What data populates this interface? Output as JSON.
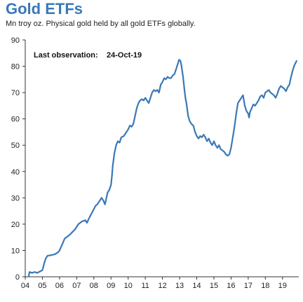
{
  "chart_data": {
    "type": "line",
    "title": "Gold ETFs",
    "subtitle": "Mn troy oz. Physical gold held by all gold ETFs globally.",
    "xlabel": "",
    "ylabel": "",
    "xlim": [
      2004.0,
      2019.95
    ],
    "ylim": [
      0,
      90
    ],
    "yticks": [
      0,
      10,
      20,
      30,
      40,
      50,
      60,
      70,
      80,
      90
    ],
    "xticks": [
      {
        "value": 2004,
        "label": "04"
      },
      {
        "value": 2005,
        "label": "05"
      },
      {
        "value": 2006,
        "label": "06"
      },
      {
        "value": 2007,
        "label": "07"
      },
      {
        "value": 2008,
        "label": "08"
      },
      {
        "value": 2009,
        "label": "09"
      },
      {
        "value": 2010,
        "label": "10"
      },
      {
        "value": 2011,
        "label": "11"
      },
      {
        "value": 2012,
        "label": "12"
      },
      {
        "value": 2013,
        "label": "13"
      },
      {
        "value": 2014,
        "label": "14"
      },
      {
        "value": 2015,
        "label": "15"
      },
      {
        "value": 2016,
        "label": "16"
      },
      {
        "value": 2017,
        "label": "17"
      },
      {
        "value": 2018,
        "label": "18"
      },
      {
        "value": 2019,
        "label": "19"
      }
    ],
    "grid": false,
    "legend": "none",
    "annotation": {
      "label": "Last observation:",
      "value": "24-Oct-19"
    },
    "series": [
      {
        "color": "#3a78b8",
        "x": [
          2004.2,
          2004.25,
          2004.4,
          2004.55,
          2004.7,
          2004.85,
          2005.0,
          2005.1,
          2005.15,
          2005.2,
          2005.3,
          2005.5,
          2005.7,
          2005.9,
          2006.0,
          2006.2,
          2006.3,
          2006.4,
          2006.6,
          2006.75,
          2006.9,
          2007.1,
          2007.3,
          2007.5,
          2007.6,
          2007.7,
          2007.9,
          2008.1,
          2008.2,
          2008.35,
          2008.45,
          2008.55,
          2008.65,
          2008.8,
          2008.9,
          2009.0,
          2009.05,
          2009.1,
          2009.2,
          2009.3,
          2009.4,
          2009.5,
          2009.6,
          2009.75,
          2009.9,
          2010.0,
          2010.1,
          2010.2,
          2010.3,
          2010.4,
          2010.5,
          2010.6,
          2010.7,
          2010.8,
          2010.9,
          2011.0,
          2011.1,
          2011.2,
          2011.3,
          2011.4,
          2011.5,
          2011.6,
          2011.7,
          2011.8,
          2011.9,
          2012.0,
          2012.1,
          2012.2,
          2012.3,
          2012.4,
          2012.5,
          2012.6,
          2012.7,
          2012.8,
          2012.9,
          2012.97,
          2013.05,
          2013.1,
          2013.2,
          2013.3,
          2013.35,
          2013.4,
          2013.5,
          2013.6,
          2013.7,
          2013.8,
          2013.9,
          2014.0,
          2014.1,
          2014.2,
          2014.3,
          2014.4,
          2014.5,
          2014.6,
          2014.7,
          2014.8,
          2014.9,
          2015.0,
          2015.1,
          2015.2,
          2015.3,
          2015.4,
          2015.5,
          2015.6,
          2015.7,
          2015.8,
          2015.9,
          2016.0,
          2016.1,
          2016.15,
          2016.2,
          2016.3,
          2016.4,
          2016.5,
          2016.6,
          2016.7,
          2016.8,
          2016.9,
          2017.0,
          2017.05,
          2017.1,
          2017.2,
          2017.3,
          2017.4,
          2017.5,
          2017.6,
          2017.7,
          2017.8,
          2017.9,
          2018.0,
          2018.1,
          2018.2,
          2018.3,
          2018.4,
          2018.5,
          2018.6,
          2018.7,
          2018.8,
          2018.9,
          2019.0,
          2019.1,
          2019.2,
          2019.3,
          2019.4,
          2019.5,
          2019.6,
          2019.7,
          2019.82
        ],
        "values": [
          0.3,
          1.8,
          1.5,
          1.8,
          1.5,
          2.0,
          2.5,
          5.0,
          6.0,
          7.0,
          8.0,
          8.2,
          8.5,
          9.2,
          10.0,
          13.0,
          14.5,
          15.0,
          16.0,
          17.0,
          18.0,
          20.0,
          21.0,
          21.5,
          20.5,
          22.0,
          24.5,
          27.0,
          27.5,
          29.0,
          30.0,
          29.0,
          27.5,
          32.0,
          33.0,
          35.0,
          38.0,
          42.0,
          47.0,
          50.0,
          51.5,
          51.0,
          53.0,
          53.5,
          55.0,
          56.0,
          57.5,
          57.0,
          58.0,
          61.0,
          64.0,
          66.0,
          67.0,
          67.5,
          67.0,
          68.0,
          67.0,
          66.0,
          68.0,
          70.0,
          71.0,
          70.5,
          71.0,
          70.0,
          73.0,
          74.0,
          75.5,
          75.0,
          76.0,
          75.5,
          75.5,
          76.5,
          77.0,
          79.0,
          81.0,
          82.5,
          82.0,
          80.5,
          76.0,
          70.0,
          67.5,
          66.0,
          61.0,
          59.0,
          58.0,
          57.5,
          55.0,
          53.5,
          52.5,
          53.5,
          53.0,
          54.0,
          53.0,
          51.5,
          52.5,
          51.0,
          50.0,
          51.5,
          50.0,
          49.0,
          50.0,
          48.5,
          48.0,
          47.5,
          46.5,
          46.0,
          46.5,
          49.0,
          53.0,
          55.0,
          57.0,
          62.0,
          66.0,
          67.0,
          68.0,
          69.0,
          65.0,
          63.0,
          62.0,
          60.5,
          62.5,
          64.0,
          65.5,
          65.0,
          66.0,
          67.0,
          68.5,
          69.0,
          68.0,
          70.0,
          70.5,
          71.0,
          70.0,
          69.5,
          69.0,
          68.0,
          69.5,
          71.5,
          72.5,
          72.0,
          71.5,
          70.5,
          72.0,
          73.0,
          76.0,
          78.5,
          80.5,
          82.0
        ]
      }
    ]
  }
}
